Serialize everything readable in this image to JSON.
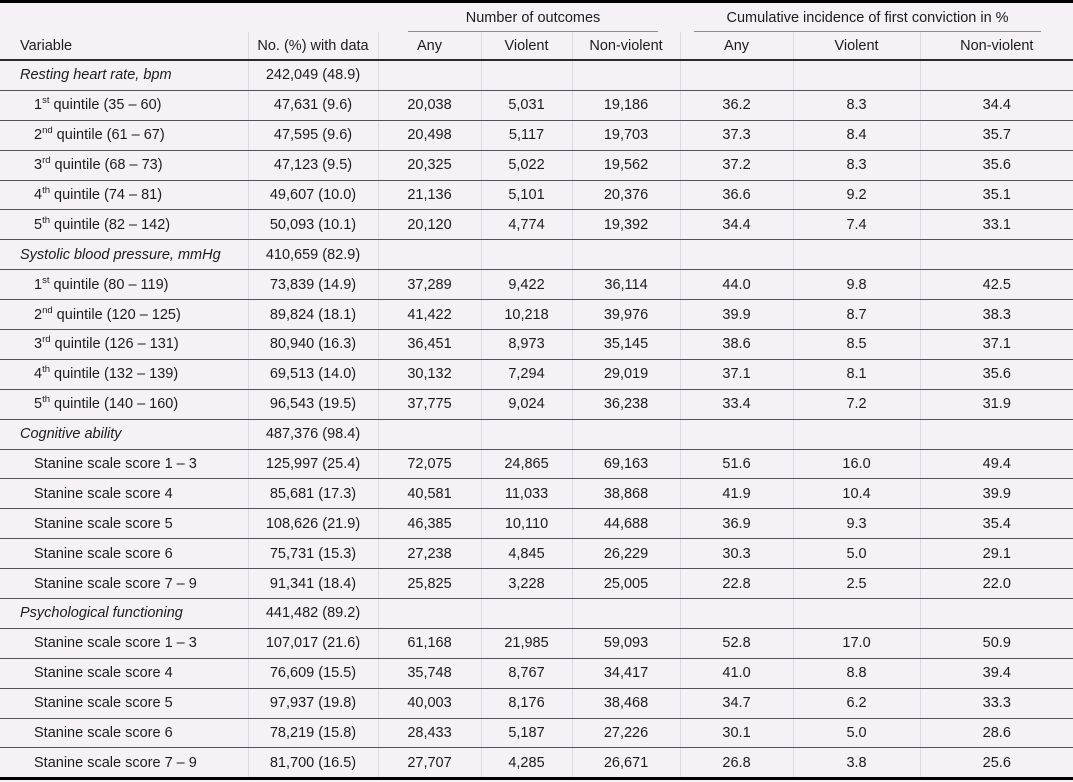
{
  "table": {
    "group_headers": {
      "outcomes": "Number of outcomes",
      "cumulative": "Cumulative incidence of first conviction in %"
    },
    "columns": {
      "variable": "Variable",
      "n_with_data": "No. (%) with data",
      "outcomes_any": "Any",
      "outcomes_violent": "Violent",
      "outcomes_nonviolent": "Non-violent",
      "cum_any": "Any",
      "cum_violent": "Violent",
      "cum_nonviolent": "Non-violent"
    },
    "sections": [
      {
        "label": "Resting heart rate, bpm",
        "n": "242,049 (48.9)",
        "rows": [
          {
            "num": "1",
            "sup": "st",
            "rest": " quintile (35 – 60)",
            "n": "47,631 (9.6)",
            "oa": "20,038",
            "ov": "5,031",
            "on": "19,186",
            "ca": "36.2",
            "cv": "8.3",
            "cn": "34.4"
          },
          {
            "num": "2",
            "sup": "nd",
            "rest": " quintile (61 – 67)",
            "n": "47,595 (9.6)",
            "oa": "20,498",
            "ov": "5,117",
            "on": "19,703",
            "ca": "37.3",
            "cv": "8.4",
            "cn": "35.7"
          },
          {
            "num": "3",
            "sup": "rd",
            "rest": " quintile (68 – 73)",
            "n": "47,123 (9.5)",
            "oa": "20,325",
            "ov": "5,022",
            "on": "19,562",
            "ca": "37.2",
            "cv": "8.3",
            "cn": "35.6"
          },
          {
            "num": "4",
            "sup": "th",
            "rest": " quintile (74 – 81)",
            "n": "49,607 (10.0)",
            "oa": "21,136",
            "ov": "5,101",
            "on": "20,376",
            "ca": "36.6",
            "cv": "9.2",
            "cn": "35.1"
          },
          {
            "num": "5",
            "sup": "th",
            "rest": " quintile (82 – 142)",
            "n": "50,093 (10.1)",
            "oa": "20,120",
            "ov": "4,774",
            "on": "19,392",
            "ca": "34.4",
            "cv": "7.4",
            "cn": "33.1"
          }
        ]
      },
      {
        "label": "Systolic blood pressure, mmHg",
        "n": "410,659 (82.9)",
        "rows": [
          {
            "num": "1",
            "sup": "st",
            "rest": " quintile (80 – 119)",
            "n": "73,839 (14.9)",
            "oa": "37,289",
            "ov": "9,422",
            "on": "36,114",
            "ca": "44.0",
            "cv": "9.8",
            "cn": "42.5"
          },
          {
            "num": "2",
            "sup": "nd",
            "rest": " quintile (120 – 125)",
            "n": "89,824 (18.1)",
            "oa": "41,422",
            "ov": "10,218",
            "on": "39,976",
            "ca": "39.9",
            "cv": "8.7",
            "cn": "38.3"
          },
          {
            "num": "3",
            "sup": "rd",
            "rest": " quintile (126 – 131)",
            "n": "80,940 (16.3)",
            "oa": "36,451",
            "ov": "8,973",
            "on": "35,145",
            "ca": "38.6",
            "cv": "8.5",
            "cn": "37.1"
          },
          {
            "num": "4",
            "sup": "th",
            "rest": " quintile (132 – 139)",
            "n": "69,513 (14.0)",
            "oa": "30,132",
            "ov": "7,294",
            "on": "29,019",
            "ca": "37.1",
            "cv": "8.1",
            "cn": "35.6"
          },
          {
            "num": "5",
            "sup": "th",
            "rest": " quintile (140 – 160)",
            "n": "96,543 (19.5)",
            "oa": "37,775",
            "ov": "9,024",
            "on": "36,238",
            "ca": "33.4",
            "cv": "7.2",
            "cn": "31.9"
          }
        ]
      },
      {
        "label": "Cognitive ability",
        "n": "487,376 (98.4)",
        "rows": [
          {
            "num": "",
            "sup": "",
            "rest": "Stanine scale score 1 – 3",
            "n": "125,997 (25.4)",
            "oa": "72,075",
            "ov": "24,865",
            "on": "69,163",
            "ca": "51.6",
            "cv": "16.0",
            "cn": "49.4"
          },
          {
            "num": "",
            "sup": "",
            "rest": "Stanine scale score 4",
            "n": "85,681 (17.3)",
            "oa": "40,581",
            "ov": "11,033",
            "on": "38,868",
            "ca": "41.9",
            "cv": "10.4",
            "cn": "39.9"
          },
          {
            "num": "",
            "sup": "",
            "rest": "Stanine scale score 5",
            "n": "108,626 (21.9)",
            "oa": "46,385",
            "ov": "10,110",
            "on": "44,688",
            "ca": "36.9",
            "cv": "9.3",
            "cn": "35.4"
          },
          {
            "num": "",
            "sup": "",
            "rest": "Stanine scale score 6",
            "n": "75,731 (15.3)",
            "oa": "27,238",
            "ov": "4,845",
            "on": "26,229",
            "ca": "30.3",
            "cv": "5.0",
            "cn": "29.1"
          },
          {
            "num": "",
            "sup": "",
            "rest": "Stanine scale score 7 – 9",
            "n": "91,341 (18.4)",
            "oa": "25,825",
            "ov": "3,228",
            "on": "25,005",
            "ca": "22.8",
            "cv": "2.5",
            "cn": "22.0"
          }
        ]
      },
      {
        "label": "Psychological functioning",
        "n": "441,482 (89.2)",
        "rows": [
          {
            "num": "",
            "sup": "",
            "rest": "Stanine scale score 1 – 3",
            "n": "107,017 (21.6)",
            "oa": "61,168",
            "ov": "21,985",
            "on": "59,093",
            "ca": "52.8",
            "cv": "17.0",
            "cn": "50.9"
          },
          {
            "num": "",
            "sup": "",
            "rest": "Stanine scale score 4",
            "n": "76,609 (15.5)",
            "oa": "35,748",
            "ov": "8,767",
            "on": "34,417",
            "ca": "41.0",
            "cv": "8.8",
            "cn": "39.4"
          },
          {
            "num": "",
            "sup": "",
            "rest": "Stanine scale score 5",
            "n": "97,937 (19.8)",
            "oa": "40,003",
            "ov": "8,176",
            "on": "38,468",
            "ca": "34.7",
            "cv": "6.2",
            "cn": "33.3"
          },
          {
            "num": "",
            "sup": "",
            "rest": "Stanine scale score 6",
            "n": "78,219 (15.8)",
            "oa": "28,433",
            "ov": "5,187",
            "on": "27,226",
            "ca": "30.1",
            "cv": "5.0",
            "cn": "28.6"
          },
          {
            "num": "",
            "sup": "",
            "rest": "Stanine scale score 7 – 9",
            "n": "81,700 (16.5)",
            "oa": "27,707",
            "ov": "4,285",
            "on": "26,671",
            "ca": "26.8",
            "cv": "3.8",
            "cn": "25.6"
          }
        ]
      }
    ]
  }
}
